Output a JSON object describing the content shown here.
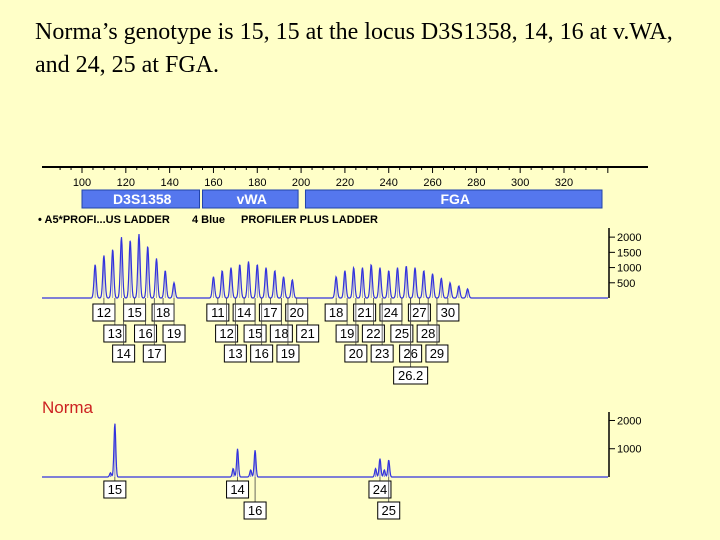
{
  "slide": {
    "title": "Norma’s genotype is 15, 15 at the locus D3S1358, 14, 16 at v.WA, and 24, 25 at FGA."
  },
  "colors": {
    "background": "#ffffc8",
    "peak": "#3333dd",
    "locus_bar": "#5577ee",
    "sample_label": "#cc2222"
  },
  "chart_data": {
    "type": "line",
    "title": "",
    "size_axis": {
      "ticks": [
        100,
        120,
        140,
        160,
        180,
        200,
        220,
        240,
        260,
        280,
        300,
        320
      ],
      "range": [
        90,
        335
      ]
    },
    "loci": [
      {
        "name": "D3S1358",
        "range": [
          100,
          155
        ]
      },
      {
        "name": "vWA",
        "range": [
          155,
          200
        ]
      },
      {
        "name": "FGA",
        "range": [
          202,
          340
        ]
      }
    ],
    "ladder": {
      "header": [
        "• A5*PROFI...US LADDER",
        "4 Blue",
        "PROFILER PLUS LADDER"
      ],
      "y_ticks": [
        2000,
        1500,
        1000,
        500
      ],
      "y_max": 2300,
      "peaks": [
        {
          "size": 106,
          "height": 1100
        },
        {
          "size": 110,
          "height": 1400
        },
        {
          "size": 114,
          "height": 1600
        },
        {
          "size": 118,
          "height": 2000
        },
        {
          "size": 122,
          "height": 1900
        },
        {
          "size": 126,
          "height": 2100
        },
        {
          "size": 130,
          "height": 1700
        },
        {
          "size": 134,
          "height": 1300
        },
        {
          "size": 138,
          "height": 900
        },
        {
          "size": 142,
          "height": 500
        },
        {
          "size": 160,
          "height": 700
        },
        {
          "size": 164,
          "height": 900
        },
        {
          "size": 168,
          "height": 1000
        },
        {
          "size": 172,
          "height": 1100
        },
        {
          "size": 176,
          "height": 1200
        },
        {
          "size": 180,
          "height": 1100
        },
        {
          "size": 184,
          "height": 1000
        },
        {
          "size": 188,
          "height": 900
        },
        {
          "size": 192,
          "height": 700
        },
        {
          "size": 196,
          "height": 600
        },
        {
          "size": 216,
          "height": 700
        },
        {
          "size": 220,
          "height": 900
        },
        {
          "size": 224,
          "height": 1000
        },
        {
          "size": 228,
          "height": 1000
        },
        {
          "size": 232,
          "height": 1100
        },
        {
          "size": 236,
          "height": 1000
        },
        {
          "size": 240,
          "height": 900
        },
        {
          "size": 244,
          "height": 1000
        },
        {
          "size": 248,
          "height": 1050
        },
        {
          "size": 252,
          "height": 1000
        },
        {
          "size": 256,
          "height": 900
        },
        {
          "size": 260,
          "height": 800
        },
        {
          "size": 264,
          "height": 650
        },
        {
          "size": 268,
          "height": 500
        },
        {
          "size": 272,
          "height": 400
        },
        {
          "size": 276,
          "height": 300
        }
      ],
      "allele_rows": [
        [
          {
            "label": "12",
            "size": 110
          },
          {
            "label": "15",
            "size": 124
          },
          {
            "label": "18",
            "size": 137
          },
          {
            "label": "11",
            "size": 162
          },
          {
            "label": "14",
            "size": 174
          },
          {
            "label": "17",
            "size": 186
          },
          {
            "label": "20",
            "size": 198
          },
          {
            "label": "18",
            "size": 216
          },
          {
            "label": "21",
            "size": 229
          },
          {
            "label": "24",
            "size": 241
          },
          {
            "label": "27",
            "size": 254
          },
          {
            "label": "30",
            "size": 267
          }
        ],
        [
          {
            "label": "13",
            "size": 115
          },
          {
            "label": "16",
            "size": 129
          },
          {
            "label": "19",
            "size": 142
          },
          {
            "label": "12",
            "size": 166
          },
          {
            "label": "15",
            "size": 179
          },
          {
            "label": "18",
            "size": 191
          },
          {
            "label": "21",
            "size": 203
          },
          {
            "label": "19",
            "size": 221
          },
          {
            "label": "22",
            "size": 233
          },
          {
            "label": "25",
            "size": 246
          },
          {
            "label": "28",
            "size": 258
          }
        ],
        [
          {
            "label": "14",
            "size": 119
          },
          {
            "label": "17",
            "size": 133
          },
          {
            "label": "13",
            "size": 170
          },
          {
            "label": "16",
            "size": 182
          },
          {
            "label": "19",
            "size": 194
          },
          {
            "label": "20",
            "size": 225
          },
          {
            "label": "23",
            "size": 237
          },
          {
            "label": "26",
            "size": 250
          },
          {
            "label": "29",
            "size": 262
          }
        ],
        [
          {
            "label": "26.2",
            "size": 250
          }
        ]
      ]
    },
    "sample": {
      "name": "Norma",
      "y_ticks": [
        2000,
        1000
      ],
      "y_max": 2300,
      "peaks": [
        {
          "size": 113,
          "height": 150
        },
        {
          "size": 115,
          "height": 1900
        },
        {
          "size": 169,
          "height": 300
        },
        {
          "size": 171,
          "height": 1000
        },
        {
          "size": 177,
          "height": 250
        },
        {
          "size": 179,
          "height": 950
        },
        {
          "size": 234,
          "height": 300
        },
        {
          "size": 236,
          "height": 650
        },
        {
          "size": 238,
          "height": 250
        },
        {
          "size": 240,
          "height": 600
        }
      ],
      "alleles": [
        {
          "label": "15",
          "size": 115,
          "row": 0
        },
        {
          "label": "14",
          "size": 171,
          "row": 0
        },
        {
          "label": "16",
          "size": 179,
          "row": 1
        },
        {
          "label": "24",
          "size": 236,
          "row": 0
        },
        {
          "label": "25",
          "size": 240,
          "row": 1
        }
      ]
    }
  }
}
